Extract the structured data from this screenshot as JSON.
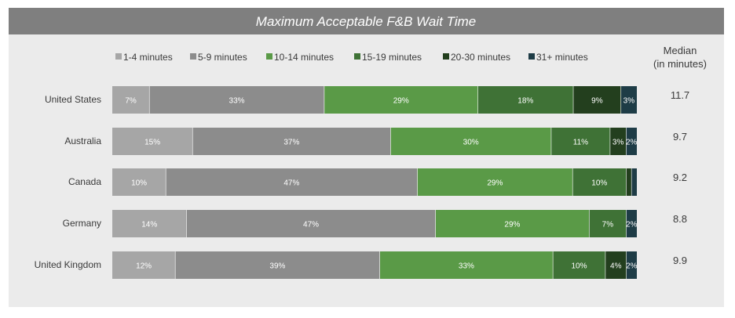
{
  "chart_data": {
    "type": "bar",
    "orientation": "horizontal",
    "stacked": true,
    "title": "Maximum Acceptable F&B Wait Time",
    "categories": [
      "United States",
      "Australia",
      "Canada",
      "Germany",
      "United Kingdom"
    ],
    "series": [
      {
        "name": "1-4 minutes",
        "color": "#a6a6a6",
        "values": [
          7,
          15,
          10,
          14,
          12
        ]
      },
      {
        "name": "5-9 minutes",
        "color": "#8c8c8c",
        "values": [
          33,
          37,
          47,
          47,
          39
        ]
      },
      {
        "name": "10-14 minutes",
        "color": "#5a9a47",
        "values": [
          29,
          30,
          29,
          29,
          33
        ]
      },
      {
        "name": "15-19 minutes",
        "color": "#3f7236",
        "values": [
          18,
          11,
          10,
          7,
          10
        ]
      },
      {
        "name": "20-30 minutes",
        "color": "#233f1e",
        "values": [
          9,
          3,
          1,
          0,
          4
        ]
      },
      {
        "name": "31+ minutes",
        "color": "#1e3c46",
        "values": [
          3,
          2,
          1,
          2,
          2
        ]
      }
    ],
    "segment_labels": [
      [
        "7%",
        "33%",
        "29%",
        "18%",
        "9%",
        "3%"
      ],
      [
        "15%",
        "37%",
        "30%",
        "11%",
        "3%",
        "2%"
      ],
      [
        "10%",
        "47%",
        "29%",
        "10%",
        "",
        ""
      ],
      [
        "14%",
        "47%",
        "29%",
        "7%",
        "",
        "2%"
      ],
      [
        "12%",
        "39%",
        "33%",
        "10%",
        "4%",
        "2%"
      ]
    ],
    "median_header": [
      "Median",
      "(in minutes)"
    ],
    "median": [
      "11.7",
      "9.7",
      "9.2",
      "8.8",
      "9.9"
    ],
    "legend_position": "top",
    "grid": false
  },
  "colors": {
    "panel_background": "#ebebeb",
    "title_bar": "#7f7f7f",
    "bar_track": "#e0e0e0"
  }
}
